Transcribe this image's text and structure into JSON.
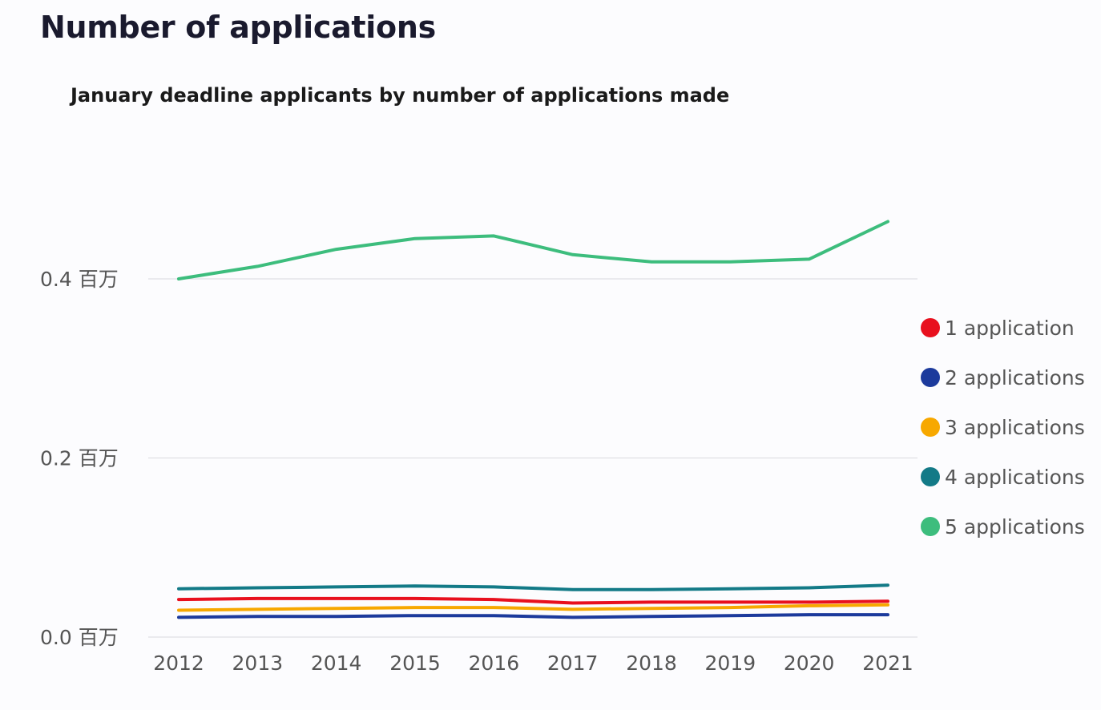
{
  "page": {
    "title": "Number of applications"
  },
  "chart_data": {
    "type": "line",
    "title": "January deadline applicants by number of applications made",
    "xlabel": "",
    "ylabel": "",
    "categories": [
      "2012",
      "2013",
      "2014",
      "2015",
      "2016",
      "2017",
      "2018",
      "2019",
      "2020",
      "2021"
    ],
    "ylim": [
      0,
      0.5
    ],
    "y_ticks": [
      {
        "value": 0.0,
        "label": "0.0 百万"
      },
      {
        "value": 0.2,
        "label": "0.2 百万"
      },
      {
        "value": 0.4,
        "label": "0.4 百万"
      }
    ],
    "grid": true,
    "legend_position": "right",
    "series": [
      {
        "name": "1 application",
        "color": "#e8101e",
        "values": [
          0.042,
          0.043,
          0.043,
          0.043,
          0.042,
          0.038,
          0.039,
          0.039,
          0.039,
          0.04
        ]
      },
      {
        "name": "2 applications",
        "color": "#1c3a9c",
        "values": [
          0.022,
          0.023,
          0.023,
          0.024,
          0.024,
          0.022,
          0.023,
          0.024,
          0.025,
          0.025
        ]
      },
      {
        "name": "3 applications",
        "color": "#f7a800",
        "values": [
          0.03,
          0.031,
          0.032,
          0.033,
          0.033,
          0.031,
          0.032,
          0.033,
          0.035,
          0.036
        ]
      },
      {
        "name": "4 applications",
        "color": "#137a87",
        "values": [
          0.054,
          0.055,
          0.056,
          0.057,
          0.056,
          0.053,
          0.053,
          0.054,
          0.055,
          0.058
        ]
      },
      {
        "name": "5 applications",
        "color": "#3dbd7d",
        "values": [
          0.4,
          0.414,
          0.433,
          0.445,
          0.448,
          0.427,
          0.419,
          0.419,
          0.422,
          0.464
        ]
      }
    ]
  }
}
